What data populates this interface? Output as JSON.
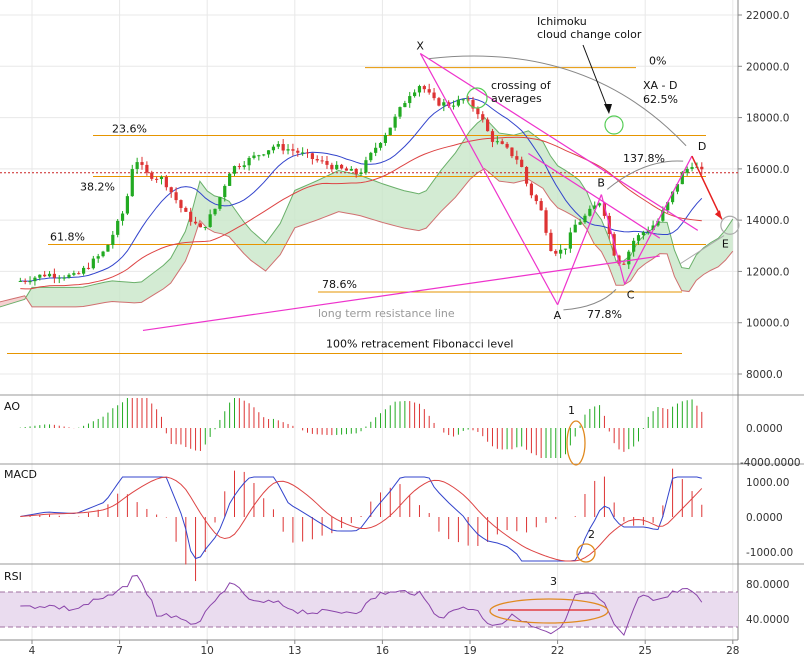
{
  "chart_data": [
    {
      "panel": "price",
      "type": "line",
      "x_ticks": [
        "4",
        "7",
        "10",
        "13",
        "16",
        "19",
        "22",
        "25",
        "28"
      ],
      "y_ticks": [
        "22000.0",
        "20000.0",
        "18000.0",
        "16000.0",
        "14000.0",
        "12000.0",
        "10000.0",
        "8000.0"
      ],
      "ylim": [
        7000,
        22500
      ],
      "fib_levels": [
        {
          "label": "0%",
          "value": 19950
        },
        {
          "label": "23.6%",
          "value": 17300
        },
        {
          "label": "38.2%",
          "value": 15700
        },
        {
          "label": "61.8%",
          "value": 13050
        },
        {
          "label": "78.6%",
          "value": 11200
        },
        {
          "label": "100% retracement Fibonacci level",
          "value": 8800
        }
      ],
      "pattern_points": [
        {
          "label": "X",
          "x": 17.3,
          "y": 20500
        },
        {
          "label": "A",
          "x": 22.0,
          "y": 10700
        },
        {
          "label": "B",
          "x": 23.5,
          "y": 15000
        },
        {
          "label": "C",
          "x": 24.3,
          "y": 11500
        },
        {
          "label": "D",
          "x": 26.6,
          "y": 16500
        },
        {
          "label": "E",
          "x": 27.9,
          "y": 13800
        }
      ],
      "annotations": [
        "crossing of",
        "averages",
        "Ichimoku",
        "cloud change color",
        "XA - D",
        "62.5%",
        "137.8%",
        "77.8%",
        "long term resistance line"
      ],
      "colors": {
        "bull": "#22aa22",
        "bear": "#dd3333",
        "fib": "#e69500",
        "pattern": "#ee33cc",
        "cloud": "#c8e6c8",
        "cloud_red": "#f3c6c6",
        "ma_blue": "#3344cc",
        "ma_red": "#dd4444"
      }
    },
    {
      "panel": "AO",
      "type": "bar",
      "title": "AO",
      "y_ticks": [
        "0.0000",
        "-4000.0000"
      ],
      "marker": "1"
    },
    {
      "panel": "MACD",
      "type": "line",
      "title": "MACD",
      "y_ticks": [
        "1000.00",
        "0.0000",
        "-1000.00"
      ],
      "marker": "2"
    },
    {
      "panel": "RSI",
      "type": "line",
      "title": "RSI",
      "y_ticks": [
        "80.0000",
        "40.0000"
      ],
      "marker": "3"
    }
  ]
}
